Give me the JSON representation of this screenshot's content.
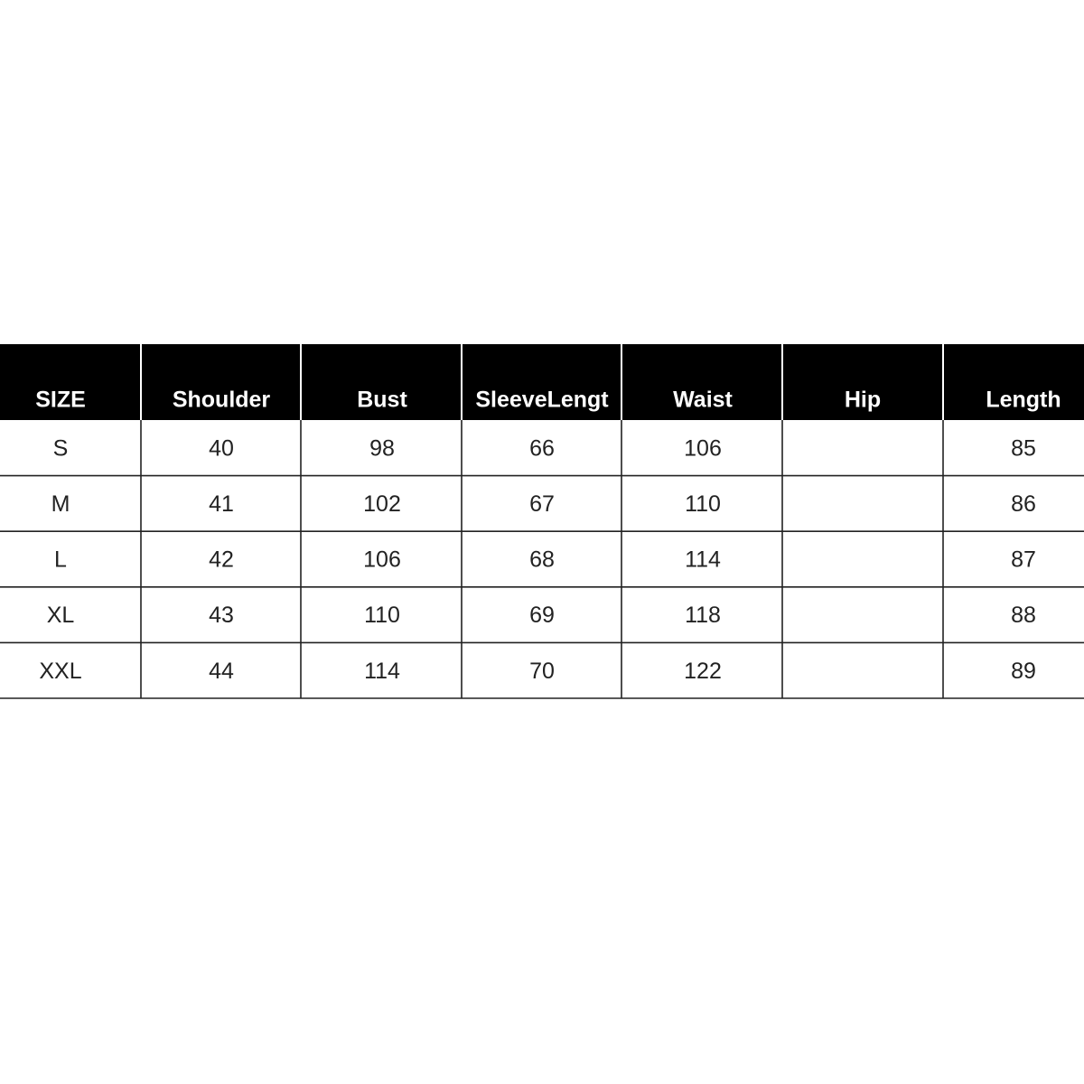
{
  "table": {
    "header": [
      "SIZE",
      "Shoulder",
      "Bust",
      "SleeveLengt",
      "Waist",
      "Hip",
      "Length"
    ],
    "rows": [
      [
        "S",
        40,
        98,
        66,
        106,
        null,
        85
      ],
      [
        "M",
        41,
        102,
        67,
        110,
        null,
        86
      ],
      [
        "L",
        42,
        106,
        68,
        114,
        null,
        87
      ],
      [
        "XL",
        43,
        110,
        69,
        118,
        null,
        88
      ],
      [
        "XXL",
        44,
        114,
        70,
        122,
        null,
        89
      ]
    ]
  }
}
